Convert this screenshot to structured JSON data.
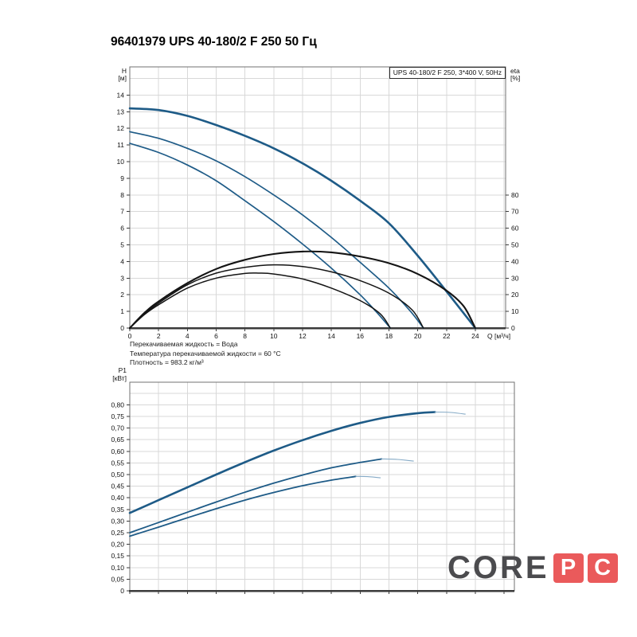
{
  "page": {
    "title": "96401979 UPS 40-180/2 F 250 50 Гц"
  },
  "legend": {
    "label": "UPS 40-180/2 F 250, 3*400 V, 50Hz"
  },
  "conditions": [
    "Перекачиваемая жидкость = Вода",
    "Температура перекачиваемой жидкости = 60 °C",
    "Плотность = 983.2 кг/м³"
  ],
  "watermark": {
    "word": "CORE",
    "tiles": [
      "P",
      "C"
    ]
  },
  "colors": {
    "curve_blue": "#1e5b87",
    "curve_blue_light": "#85aac6",
    "curve_black": "#141414",
    "grid": "#d8d8d8",
    "border": "#707070",
    "axis": "#3b3b3b",
    "text": "#111111",
    "watermark_gray": "#4b4b4e",
    "watermark_red": "#ea5a5b"
  },
  "chart_data": [
    {
      "id": "hq",
      "type": "line",
      "title": "UPS 40-180/2 F 250, 3*400 V, 50Hz",
      "x_axis": {
        "label": "Q [м³/ч]",
        "min": 0,
        "max": 26.2,
        "tick_step": 2,
        "ticks": [
          "0",
          "2",
          "4",
          "6",
          "8",
          "10",
          "12",
          "14",
          "16",
          "18",
          "20",
          "22",
          "24"
        ]
      },
      "y_left": {
        "label_lines": [
          "H",
          "[м]"
        ],
        "min": 0,
        "max": 15.7,
        "tick_step": 1,
        "ticks": [
          "0",
          "1",
          "2",
          "3",
          "4",
          "5",
          "6",
          "7",
          "8",
          "9",
          "10",
          "11",
          "12",
          "13",
          "14"
        ]
      },
      "y_right": {
        "label_lines": [
          "eta",
          "[%]"
        ],
        "min": 0,
        "max": 80,
        "tick_step": 10,
        "ticks": [
          "0",
          "10",
          "20",
          "30",
          "40",
          "50",
          "60",
          "70",
          "80"
        ]
      },
      "series": [
        {
          "name": "head-curve-speed3",
          "axis": "left",
          "color": "#1e5b87",
          "width": 2.6,
          "points": [
            [
              0,
              13.2
            ],
            [
              2,
              13.1
            ],
            [
              4,
              12.75
            ],
            [
              6,
              12.2
            ],
            [
              8,
              11.55
            ],
            [
              10,
              10.8
            ],
            [
              12,
              9.9
            ],
            [
              14,
              8.85
            ],
            [
              16,
              7.65
            ],
            [
              18,
              6.3
            ],
            [
              20,
              4.35
            ],
            [
              22,
              2.2
            ],
            [
              24,
              0
            ]
          ]
        },
        {
          "name": "head-curve-speed2",
          "axis": "left",
          "color": "#1e5b87",
          "width": 1.7,
          "points": [
            [
              0,
              11.8
            ],
            [
              2,
              11.4
            ],
            [
              4,
              10.8
            ],
            [
              6,
              10.05
            ],
            [
              8,
              9.1
            ],
            [
              10,
              8.0
            ],
            [
              12,
              6.8
            ],
            [
              14,
              5.45
            ],
            [
              16,
              3.95
            ],
            [
              18,
              2.4
            ],
            [
              19.5,
              1.0
            ],
            [
              20.4,
              0
            ]
          ]
        },
        {
          "name": "head-curve-speed1",
          "axis": "left",
          "color": "#1e5b87",
          "width": 1.7,
          "points": [
            [
              0,
              11.1
            ],
            [
              2,
              10.55
            ],
            [
              4,
              9.8
            ],
            [
              6,
              8.85
            ],
            [
              8,
              7.65
            ],
            [
              10,
              6.4
            ],
            [
              12,
              5.05
            ],
            [
              14,
              3.6
            ],
            [
              16,
              2.0
            ],
            [
              17.2,
              0.9
            ],
            [
              18.1,
              0
            ]
          ]
        },
        {
          "name": "eta-curve-speed3",
          "axis": "right",
          "color": "#141414",
          "width": 2.1,
          "points": [
            [
              0,
              0
            ],
            [
              1,
              9
            ],
            [
              2,
              16
            ],
            [
              4,
              27
            ],
            [
              6,
              35.5
            ],
            [
              8,
              41
            ],
            [
              10,
              44.5
            ],
            [
              12,
              46
            ],
            [
              14,
              45.5
            ],
            [
              16,
              43
            ],
            [
              18,
              39
            ],
            [
              20,
              32.5
            ],
            [
              22,
              22.5
            ],
            [
              23.2,
              13
            ],
            [
              24,
              0
            ]
          ]
        },
        {
          "name": "eta-curve-speed2",
          "axis": "right",
          "color": "#141414",
          "width": 1.5,
          "points": [
            [
              0,
              0
            ],
            [
              1,
              8.5
            ],
            [
              2,
              15
            ],
            [
              4,
              26
            ],
            [
              6,
              33
            ],
            [
              8,
              36.5
            ],
            [
              10,
              38
            ],
            [
              12,
              37
            ],
            [
              14,
              33.8
            ],
            [
              16,
              28.5
            ],
            [
              18,
              21
            ],
            [
              19.6,
              11
            ],
            [
              20.4,
              0
            ]
          ]
        },
        {
          "name": "eta-curve-speed1",
          "axis": "right",
          "color": "#141414",
          "width": 1.5,
          "points": [
            [
              0,
              0
            ],
            [
              1,
              8
            ],
            [
              2,
              14
            ],
            [
              4,
              24
            ],
            [
              6,
              30
            ],
            [
              8,
              32.8
            ],
            [
              9,
              33
            ],
            [
              10,
              32.5
            ],
            [
              12,
              29.5
            ],
            [
              14,
              24
            ],
            [
              16,
              16.5
            ],
            [
              17.4,
              8.5
            ],
            [
              18.1,
              0
            ]
          ]
        }
      ]
    },
    {
      "id": "p1",
      "type": "line",
      "title": "P1 power curves",
      "x_axis": {
        "label": "",
        "min": 0,
        "max": 26.7,
        "tick_step": 2,
        "ticks": null
      },
      "y_left": {
        "label_lines": [
          "P1",
          "[кВт]"
        ],
        "min": 0,
        "max": 0.9,
        "tick_step": 0.05,
        "ticks": [
          "0",
          "0,05",
          "0,10",
          "0,15",
          "0,20",
          "0,25",
          "0,30",
          "0,35",
          "0,40",
          "0,45",
          "0,50",
          "0,55",
          "0,60",
          "0,65",
          "0,70",
          "0,75",
          "0,80"
        ]
      },
      "y_right": null,
      "series": [
        {
          "name": "power-curve-speed3",
          "axis": "left",
          "color": "#1e5b87",
          "width": 2.6,
          "points": [
            [
              0,
              0.335
            ],
            [
              2,
              0.39
            ],
            [
              4,
              0.445
            ],
            [
              6,
              0.5
            ],
            [
              8,
              0.553
            ],
            [
              10,
              0.603
            ],
            [
              12,
              0.648
            ],
            [
              14,
              0.688
            ],
            [
              16,
              0.722
            ],
            [
              18,
              0.748
            ],
            [
              20,
              0.764
            ],
            [
              21.2,
              0.769
            ]
          ]
        },
        {
          "name": "power-curve-speed3-tail",
          "axis": "left",
          "color": "#85aac6",
          "width": 1.1,
          "points": [
            [
              21.2,
              0.769
            ],
            [
              22.3,
              0.767
            ],
            [
              23.3,
              0.76
            ]
          ]
        },
        {
          "name": "power-curve-speed2",
          "axis": "left",
          "color": "#1e5b87",
          "width": 1.8,
          "points": [
            [
              0,
              0.25
            ],
            [
              2,
              0.294
            ],
            [
              4,
              0.338
            ],
            [
              6,
              0.382
            ],
            [
              8,
              0.424
            ],
            [
              10,
              0.463
            ],
            [
              12,
              0.498
            ],
            [
              14,
              0.529
            ],
            [
              16,
              0.552
            ],
            [
              17.5,
              0.567
            ]
          ]
        },
        {
          "name": "power-curve-speed2-tail",
          "axis": "left",
          "color": "#85aac6",
          "width": 1.1,
          "points": [
            [
              17.5,
              0.567
            ],
            [
              18.6,
              0.565
            ],
            [
              19.7,
              0.558
            ]
          ]
        },
        {
          "name": "power-curve-speed1",
          "axis": "left",
          "color": "#1e5b87",
          "width": 1.8,
          "points": [
            [
              0,
              0.235
            ],
            [
              2,
              0.274
            ],
            [
              4,
              0.314
            ],
            [
              6,
              0.353
            ],
            [
              8,
              0.39
            ],
            [
              10,
              0.423
            ],
            [
              12,
              0.452
            ],
            [
              14,
              0.476
            ],
            [
              15.7,
              0.492
            ]
          ]
        },
        {
          "name": "power-curve-speed1-tail",
          "axis": "left",
          "color": "#85aac6",
          "width": 1.1,
          "points": [
            [
              15.7,
              0.492
            ],
            [
              16.5,
              0.491
            ],
            [
              17.4,
              0.486
            ]
          ]
        }
      ]
    }
  ]
}
